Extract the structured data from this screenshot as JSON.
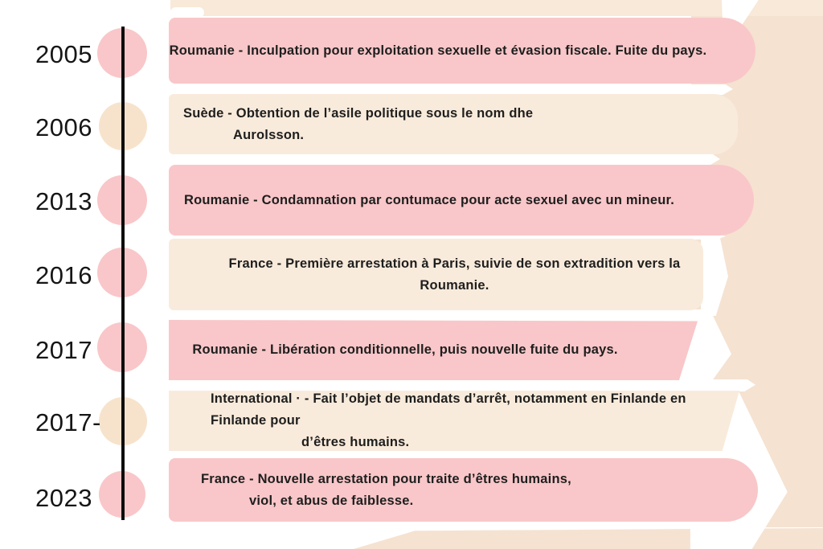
{
  "colors": {
    "banner_pink": "#f9c7c9",
    "banner_cream": "#f9ebdb",
    "background_cream": "#f5e2d1",
    "dot_cream": "#f7e3cc",
    "timeline_line": "#0d0d0d",
    "text": "#1e1e1e"
  },
  "timeline": {
    "events": [
      {
        "year": "2005",
        "dot": "pink",
        "banner": "pink",
        "lines": [
          "Roumanie - Inculpation pour exploitation sexuelle et évasion fiscale. Fuite du pays."
        ]
      },
      {
        "year": "2006",
        "dot": "cream",
        "banner": "cream",
        "lines": [
          "Suède - Obtention de l’asile politique sous le nom dhe",
          "Aurolsson."
        ]
      },
      {
        "year": "2013",
        "dot": "pink",
        "banner": "pink",
        "lines": [
          "Roumanie - Condamnation par contumace pour acte sexuel avec un mineur."
        ]
      },
      {
        "year": "2016",
        "dot": "pink",
        "banner": "cream",
        "lines": [
          "France - Première arrestation à Paris, suivie de son extradition vers la Roumanie."
        ]
      },
      {
        "year": "2017",
        "dot": "pink",
        "banner": "pink",
        "lines": [
          "Roumanie - Libération conditionnelle, puis nouvelle fuite du pays."
        ]
      },
      {
        "year": "2017-",
        "dot": "cream",
        "banner": "cream",
        "lines": [
          "International · - Fait l’objet de mandats d’arrêt, notamment en Finlande en Finlande pour",
          "d’êtres humains."
        ]
      },
      {
        "year": "2023",
        "dot": "pink",
        "banner": "pink",
        "lines": [
          "France - Nouvelle arrestation pour traite d’êtres humains,",
          "viol, et abus de faiblesse."
        ]
      }
    ]
  }
}
